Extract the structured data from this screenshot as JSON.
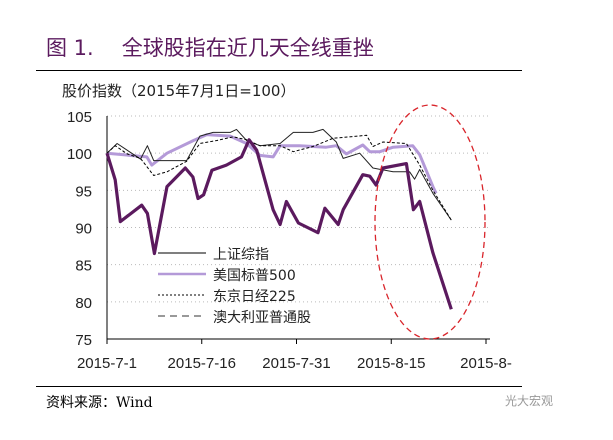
{
  "header": {
    "fig_label": "图 1.",
    "title": "全球股指在近几天全线重挫"
  },
  "footer": {
    "source": "资料来源：Wind",
    "watermark": "光大宏观"
  },
  "chart_data": {
    "type": "line",
    "title": "全球股指在近几天全线重挫",
    "ylabel": "股价指数（2015年7月1日=100）",
    "xlabel": "",
    "x_unit": "days since 2015-7-1",
    "xlim": [
      0,
      60
    ],
    "ylim": [
      75,
      105
    ],
    "yticks": [
      75,
      80,
      85,
      90,
      95,
      100,
      105
    ],
    "xticks": [
      {
        "v": 0,
        "label": "2015-7-1"
      },
      {
        "v": 15,
        "label": "2015-7-16"
      },
      {
        "v": 30,
        "label": "2015-7-31"
      },
      {
        "v": 45,
        "label": "2015-8-15"
      },
      {
        "v": 60,
        "label": "2015-8-"
      }
    ],
    "grid": true,
    "legend_position": "center-left",
    "annotation": "red dashed ellipse highlighting mid/late August decline",
    "series": [
      {
        "name": "上证综指",
        "style": "thick",
        "color": "#5b1a5e",
        "x": [
          0,
          1.3,
          2.1,
          5.5,
          6.4,
          7.5,
          9.5,
          12.4,
          13.6,
          14.4,
          15.3,
          16.6,
          18.9,
          21.3,
          22.5,
          23.7,
          26.3,
          27.4,
          28.4,
          30.3,
          33.4,
          34.5,
          36.6,
          37.4,
          40.5,
          41.6,
          42.6,
          43.7,
          47.4,
          48.5,
          49.5,
          51.6,
          54.5
        ],
        "y": [
          100,
          96.4,
          90.8,
          93.0,
          91.9,
          86.5,
          95.5,
          98.0,
          96.8,
          93.9,
          94.4,
          97.7,
          98.4,
          99.5,
          101.8,
          100.4,
          92.4,
          90.4,
          93.5,
          90.6,
          89.3,
          92.6,
          90.4,
          92.4,
          97.1,
          96.9,
          95.7,
          98.0,
          98.6,
          92.4,
          93.5,
          86.6,
          79.0
        ]
      },
      {
        "name": "美国标普500",
        "style": "light",
        "color": "#b49ad8",
        "x": [
          0,
          6.3,
          7.1,
          9.5,
          13.7,
          15.8,
          19.5,
          22.1,
          24.2,
          26.3,
          27.4,
          30.5,
          34.7,
          36.3,
          37.9,
          40.5,
          41.6,
          43.2,
          45.3,
          48.4,
          49.5,
          51.6,
          52.1
        ],
        "y": [
          100,
          99.5,
          98.4,
          100,
          101.7,
          102.5,
          102.3,
          101.3,
          99.7,
          99.5,
          101,
          101,
          100.8,
          101,
          99.9,
          101.1,
          100.2,
          100.2,
          100.8,
          101,
          99.8,
          95.5,
          94.6
        ]
      },
      {
        "name": "东京日经225",
        "style": "short-dash",
        "color": "#000000",
        "x": [
          0,
          1.3,
          3.2,
          5.3,
          7.4,
          9.5,
          12.6,
          14.7,
          17.4,
          20,
          22.1,
          24.2,
          27.4,
          29.5,
          32.6,
          35.8,
          41.1,
          42.1,
          43.7,
          47.4,
          49.5,
          51.6,
          54.5
        ],
        "y": [
          100,
          101,
          99.9,
          99.3,
          97,
          97.5,
          98.9,
          101.3,
          101.7,
          102.2,
          101.8,
          101,
          101,
          100.2,
          100.9,
          102,
          102.4,
          100.9,
          101.5,
          101.3,
          98.4,
          95,
          91
        ]
      },
      {
        "name": "澳大利亚普通股",
        "style": "long-dash",
        "color": "#000000",
        "x": [
          0,
          1.6,
          5.3,
          6.4,
          7.4,
          8.4,
          12.6,
          14.7,
          16.8,
          19.5,
          20.5,
          22.1,
          24.2,
          27.4,
          29.5,
          32.6,
          34.2,
          36.3,
          37.4,
          40,
          42.1,
          45.3,
          47.9,
          48.7,
          49.5,
          51.6,
          54.5
        ],
        "y": [
          100,
          101.3,
          99.2,
          101,
          99,
          99,
          99,
          102.3,
          102.8,
          102.8,
          103.2,
          101.7,
          101,
          101.3,
          102.8,
          102.8,
          103.2,
          101.5,
          99.3,
          100,
          98,
          97.5,
          97.5,
          96.5,
          97.8,
          94.6,
          91
        ]
      }
    ]
  }
}
